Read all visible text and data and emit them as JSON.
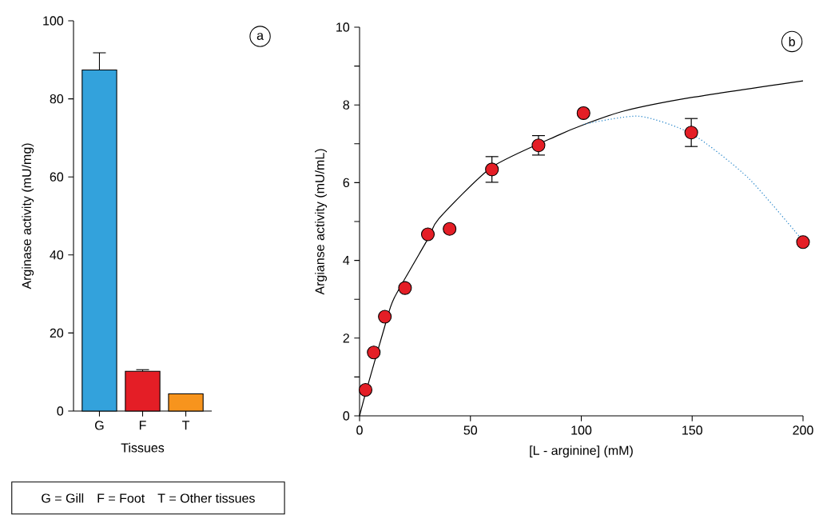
{
  "chart_data": [
    {
      "type": "bar",
      "ylabel": "Arginase activity (mU/mg)",
      "xlabel": "Tissues",
      "categories": [
        "G",
        "F",
        "T"
      ],
      "values": [
        87.4,
        10.2,
        4.4
      ],
      "errors": [
        4.4,
        0.4,
        null
      ],
      "colors": [
        "#33a2dc",
        "#e41e26",
        "#f7941d"
      ],
      "ylim": [
        0,
        100
      ],
      "yticks": [
        0,
        20,
        40,
        60,
        80,
        100
      ],
      "annotations": [
        "a",
        "G = Gill",
        "F = Foot",
        "T = Other tissues"
      ]
    },
    {
      "type": "scatter",
      "ylabel": "Argianse activity (mU/mL)",
      "xlabel": "[L - arginine] (mM)",
      "xlim": [
        0,
        200
      ],
      "xticks": [
        0,
        50,
        100,
        150,
        200
      ],
      "ylim": [
        0,
        10
      ],
      "yticks": [
        0,
        {
          "value": 1,
          "label": null
        },
        2,
        {
          "value": 3,
          "label": null
        },
        4,
        {
          "value": 5,
          "label": null
        },
        6,
        {
          "value": 7,
          "label": null
        },
        8,
        {
          "value": 9,
          "label": null
        },
        10
      ],
      "annotations": [
        "b"
      ],
      "series": [
        {
          "type": "scatter",
          "marker": "circle",
          "color": "#e41e26",
          "x": [
            2.7,
            6.4,
            11.4,
            20.5,
            30.8,
            40.6,
            59.7,
            80.7,
            101,
            149.6,
            200
          ],
          "values": [
            0.67,
            1.63,
            2.55,
            3.29,
            4.67,
            4.81,
            6.34,
            6.96,
            7.79,
            7.29,
            4.47
          ],
          "errors": [
            null,
            null,
            null,
            null,
            null,
            null,
            0.33,
            0.25,
            null,
            0.36,
            null
          ]
        },
        {
          "type": "line",
          "line_style": "solid",
          "color": "#000000",
          "x": [
            0,
            2.7,
            11.4,
            15.6,
            30.8,
            35.7,
            59.7,
            90,
            101,
            119,
            149.6,
            200
          ],
          "values": [
            0,
            0.58,
            2.31,
            3.03,
            4.55,
            5.07,
            6.4,
            7.23,
            7.49,
            7.84,
            8.19,
            8.62
          ]
        },
        {
          "type": "line",
          "line_style": "dotted",
          "color": "#1a7fc7",
          "x": [
            101,
            126,
            150,
            175.5,
            200
          ],
          "values": [
            7.5,
            7.71,
            7.25,
            6.11,
            4.5
          ]
        }
      ]
    }
  ]
}
